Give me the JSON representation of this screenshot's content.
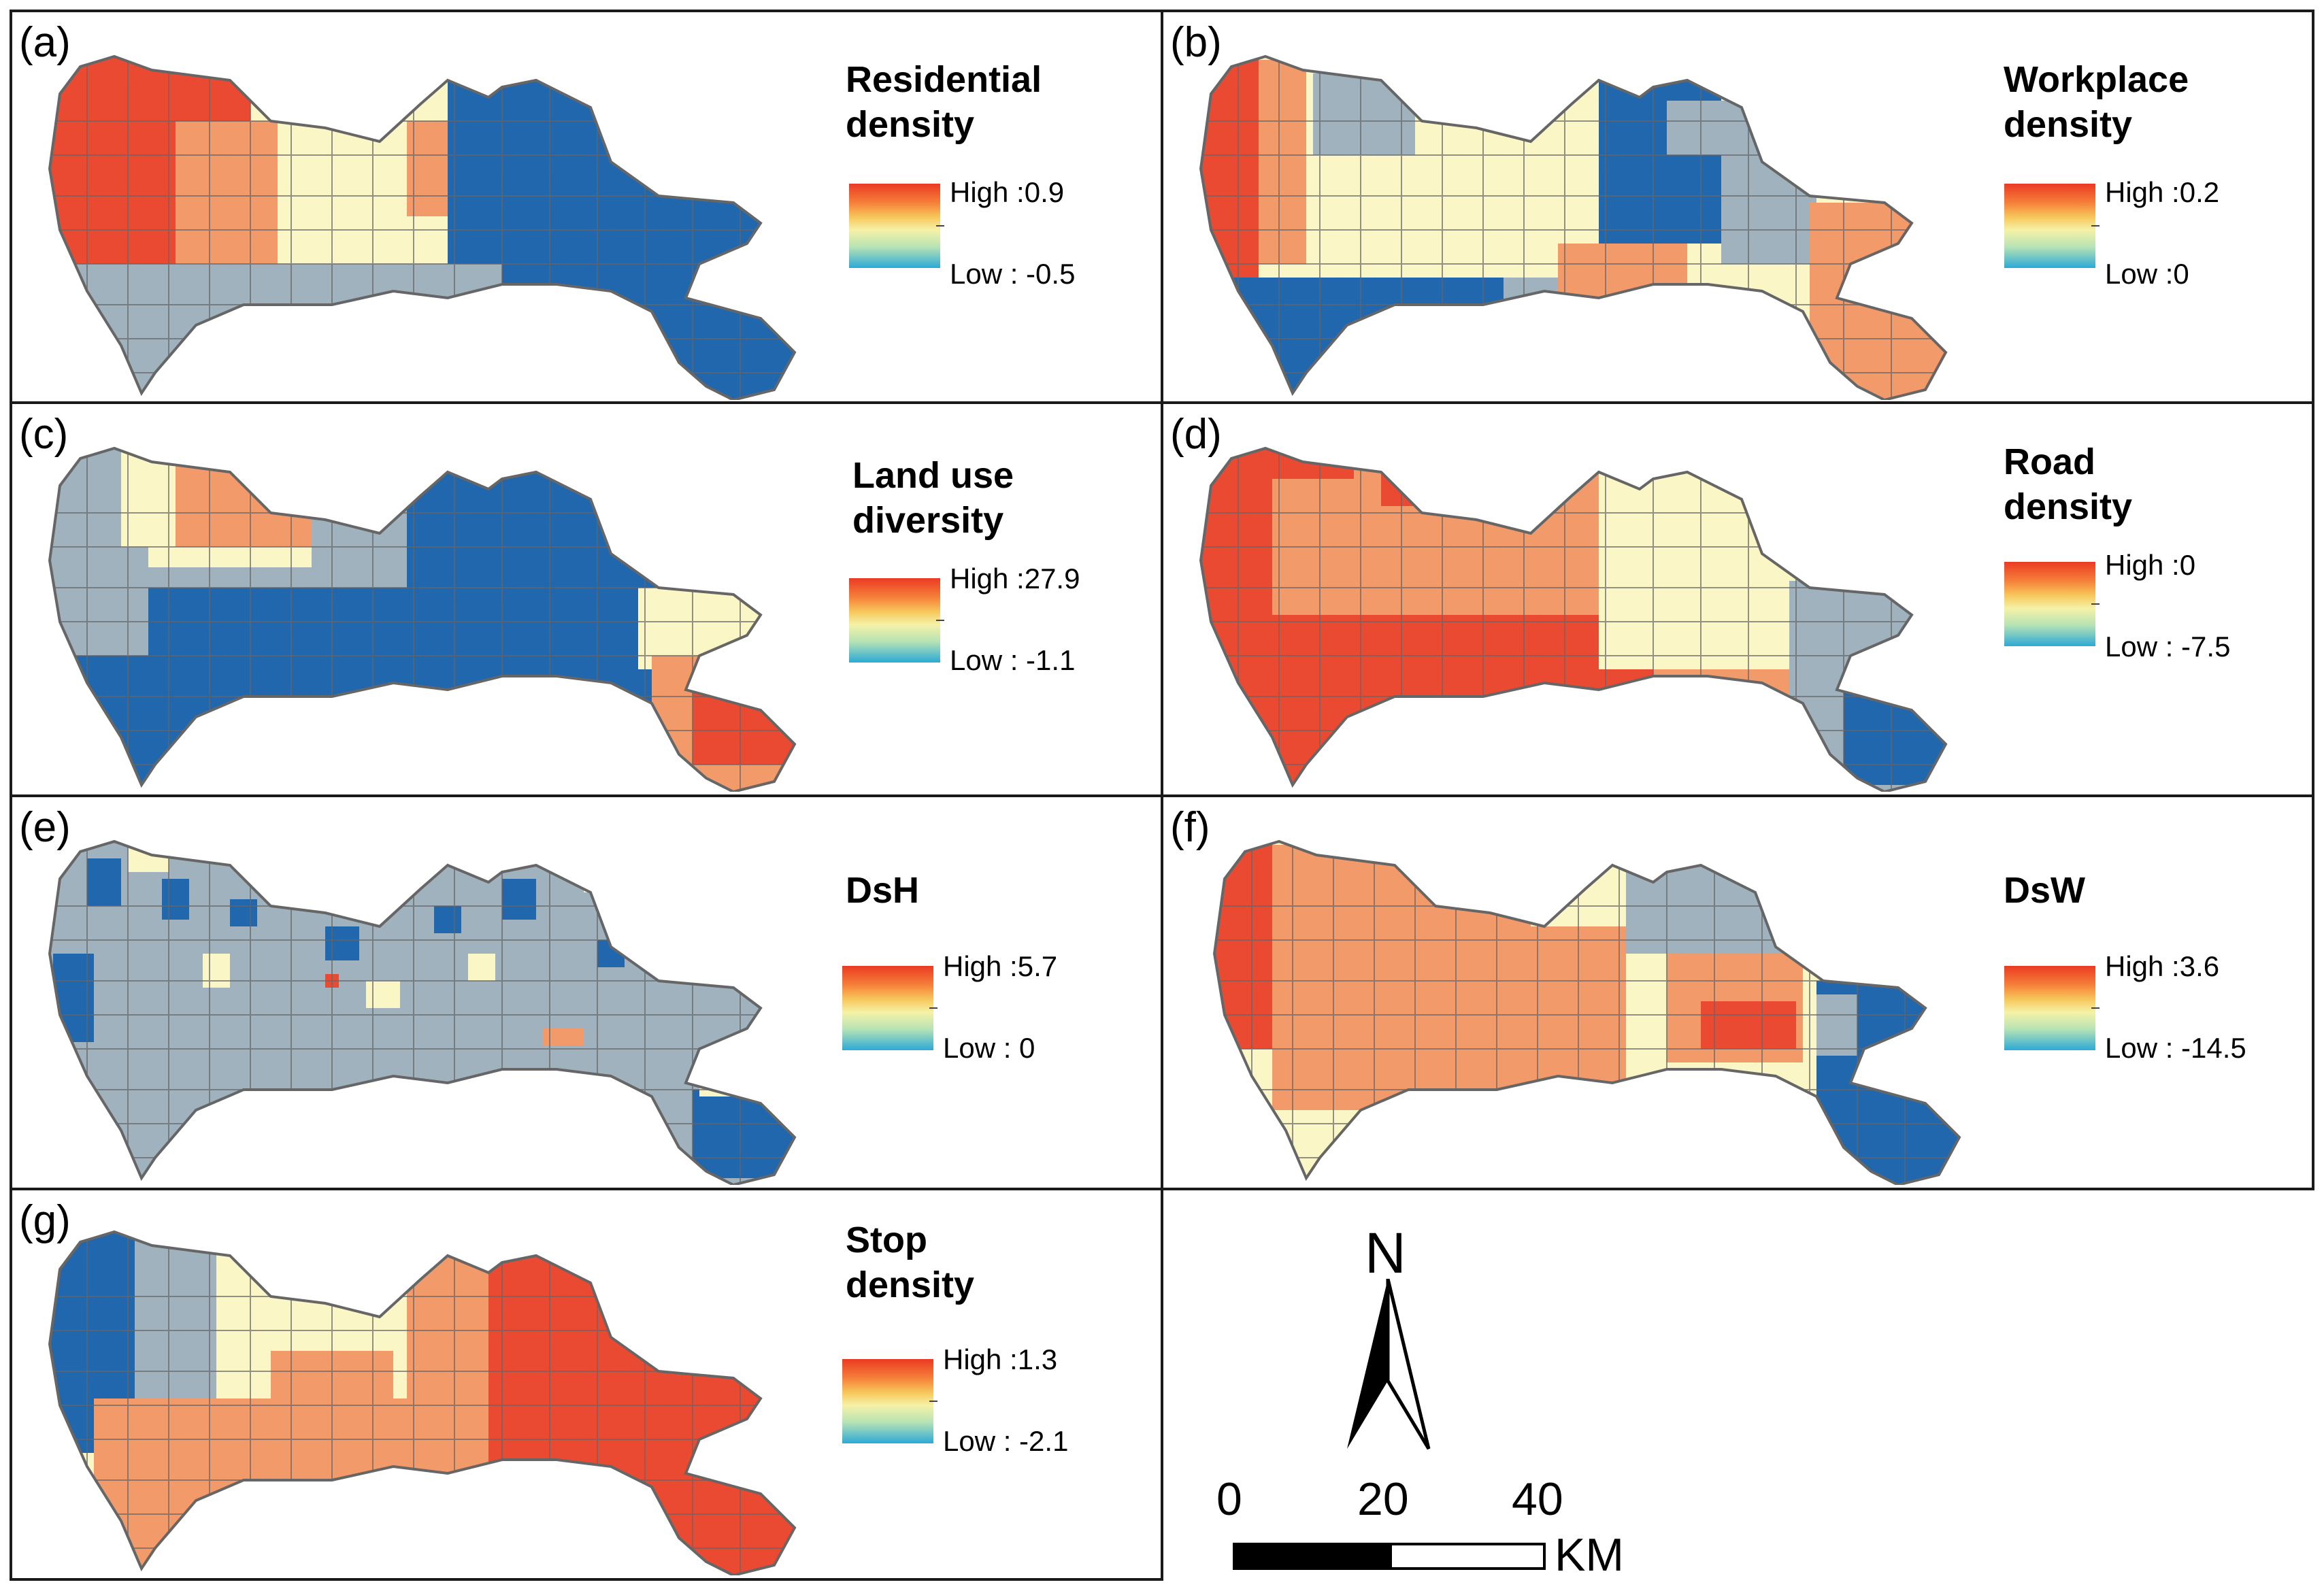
{
  "colors": {
    "high": "#ea4a32",
    "mid_high": "#f39a6b",
    "mid": "#fbf6c6",
    "mid_low": "#9fb2bd",
    "low": "#2167ae",
    "boundary": "#666666",
    "frame": "#1a1a1a"
  },
  "panels": [
    {
      "label": "(a)",
      "title": [
        "Residential",
        "density"
      ],
      "legend": {
        "high": "High :0.9",
        "low": "Low : -0.5"
      }
    },
    {
      "label": "(b)",
      "title": [
        "Workplace",
        "density"
      ],
      "legend": {
        "high": "High :0.2",
        "low": "Low :0"
      }
    },
    {
      "label": "(c)",
      "title": [
        "Land use",
        "diversity"
      ],
      "legend": {
        "high": "High :27.9",
        "low": "Low : -1.1"
      }
    },
    {
      "label": "(d)",
      "title": [
        "Road",
        "density"
      ],
      "legend": {
        "high": "High :0",
        "low": "Low : -7.5"
      }
    },
    {
      "label": "(e)",
      "title": [
        "DsH"
      ],
      "legend": {
        "high": "High :5.7",
        "low": "Low : 0"
      }
    },
    {
      "label": "(f)",
      "title": [
        "DsW"
      ],
      "legend": {
        "high": "High :3.6",
        "low": "Low : -14.5"
      }
    },
    {
      "label": "(g)",
      "title": [
        "Stop",
        "density"
      ],
      "legend": {
        "high": "High :1.3",
        "low": "Low : -2.1"
      }
    }
  ],
  "north_arrow": {
    "label": "N"
  },
  "scale_bar": {
    "ticks": [
      "0",
      "20",
      "40"
    ],
    "unit": "KM"
  }
}
